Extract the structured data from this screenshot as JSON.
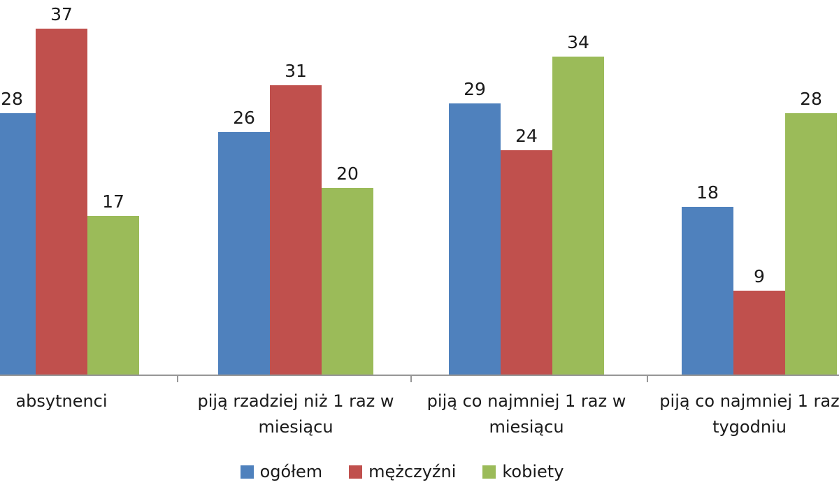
{
  "chart_data": {
    "type": "bar",
    "title": "",
    "xlabel": "",
    "ylabel": "",
    "categories": [
      "absytnenci",
      "piją rzadziej niż 1 raz w miesiącu",
      "piją co najmniej 1 raz w miesiącu",
      "piją co najmniej 1 raz tygodniu"
    ],
    "category_label_lines": [
      [
        "absytnenci"
      ],
      [
        "piją rzadziej niż 1 raz w",
        "miesiącu"
      ],
      [
        "piją co najmniej 1 raz w",
        "miesiącu"
      ],
      [
        "piją co najmniej 1 raz",
        "tygodniu"
      ]
    ],
    "series": [
      {
        "name": "ogółem",
        "color": "#4F81BD",
        "values": [
          28,
          26,
          29,
          18
        ]
      },
      {
        "name": "mężczyźni",
        "color": "#C0504D",
        "values": [
          37,
          31,
          24,
          9
        ]
      },
      {
        "name": "kobiety",
        "color": "#9BBB59",
        "values": [
          17,
          20,
          34,
          28
        ]
      }
    ],
    "ylim": [
      0,
      40
    ],
    "grid": false,
    "data_labels": true,
    "legend_position": "bottom",
    "axis_color": "#969696",
    "label_color": "#1a1a1a"
  }
}
